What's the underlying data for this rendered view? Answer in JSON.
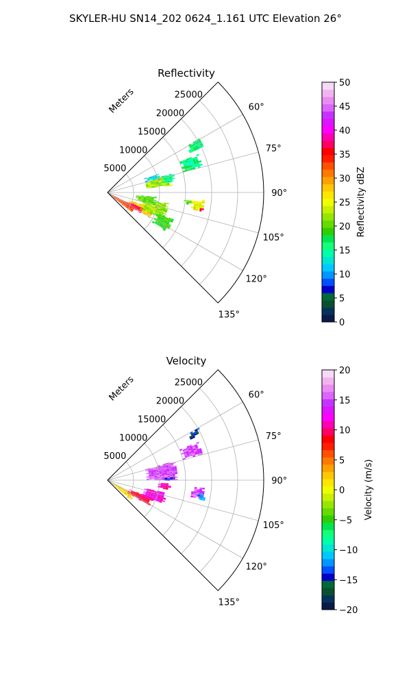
{
  "figure": {
    "title": "SKYLER-HU  SN14_202  0624_1.161 UTC Elevation 26°"
  },
  "chart_data": [
    {
      "type": "heatmap",
      "projection": "polar-sector",
      "title": "Reflectivity",
      "radial_label": "Meters",
      "radial_ticks": [
        5000,
        10000,
        15000,
        20000,
        25000
      ],
      "radial_tick_labels": [
        "5000",
        "10000",
        "15000",
        "20000",
        "25000"
      ],
      "rlim": [
        0,
        30000
      ],
      "angle_ticks": [
        60,
        75,
        90,
        105,
        120,
        135
      ],
      "angle_tick_labels": [
        "60°",
        "75°",
        "90°",
        "105°",
        "120°",
        "135°"
      ],
      "theta_range_deg": [
        45,
        135
      ],
      "grid": true,
      "colorbar": {
        "label": "Reflectivity dBZ",
        "min": 0,
        "max": 50,
        "ticks": [
          0,
          5,
          10,
          15,
          20,
          25,
          30,
          35,
          40,
          45,
          50
        ],
        "tick_labels": [
          "0",
          "5",
          "10",
          "15",
          "20",
          "25",
          "30",
          "35",
          "40",
          "45",
          "50"
        ],
        "colors": [
          "#0a1a4a",
          "#06325a",
          "#0a5030",
          "#00693a",
          "#0000c8",
          "#0050ff",
          "#0096ff",
          "#00c8ff",
          "#00e6d2",
          "#00ffaa",
          "#14ff78",
          "#00e650",
          "#32cd00",
          "#64dc00",
          "#96e600",
          "#c8f000",
          "#f0ff00",
          "#ffe600",
          "#ffc800",
          "#ffa000",
          "#ff7800",
          "#ff5000",
          "#ff1e00",
          "#ff0000",
          "#ff0064",
          "#ff00b4",
          "#ff00ff",
          "#dc14ff",
          "#c832ff",
          "#dc64ff",
          "#eb8cf0",
          "#f0b4f0",
          "#f8d8f8"
        ]
      },
      "echoes": [
        {
          "r": 3000,
          "az": 123,
          "dr": 6000,
          "daz": 14,
          "value": 33
        },
        {
          "r": 7000,
          "az": 115,
          "dr": 5000,
          "daz": 12,
          "value": 28
        },
        {
          "r": 9500,
          "az": 108,
          "dr": 5000,
          "daz": 16,
          "value": 22
        },
        {
          "r": 7500,
          "az": 100,
          "dr": 4000,
          "daz": 10,
          "value": 20
        },
        {
          "r": 6000,
          "az": 118,
          "dr": 3000,
          "daz": 8,
          "value": 37
        },
        {
          "r": 12000,
          "az": 118,
          "dr": 3500,
          "daz": 12,
          "value": 19
        },
        {
          "r": 10000,
          "az": 79,
          "dr": 5000,
          "daz": 10,
          "value": 22
        },
        {
          "r": 9000,
          "az": 72,
          "dr": 3000,
          "daz": 6,
          "value": 12
        },
        {
          "r": 12000,
          "az": 77,
          "dr": 2500,
          "daz": 7,
          "value": 15
        },
        {
          "r": 17000,
          "az": 71,
          "dr": 4000,
          "daz": 8,
          "value": 16
        },
        {
          "r": 19000,
          "az": 62,
          "dr": 3000,
          "daz": 5,
          "value": 15
        },
        {
          "r": 17500,
          "az": 98,
          "dr": 2500,
          "daz": 7,
          "value": 25
        },
        {
          "r": 18200,
          "az": 100,
          "dr": 1200,
          "daz": 3,
          "value": 37
        },
        {
          "r": 15500,
          "az": 97,
          "dr": 1500,
          "daz": 3,
          "value": 20
        }
      ]
    },
    {
      "type": "heatmap",
      "projection": "polar-sector",
      "title": "Velocity",
      "radial_label": "Meters",
      "radial_ticks": [
        5000,
        10000,
        15000,
        20000,
        25000
      ],
      "radial_tick_labels": [
        "5000",
        "10000",
        "15000",
        "20000",
        "25000"
      ],
      "rlim": [
        0,
        30000
      ],
      "angle_ticks": [
        60,
        75,
        90,
        105,
        120,
        135
      ],
      "angle_tick_labels": [
        "60°",
        "75°",
        "90°",
        "105°",
        "120°",
        "135°"
      ],
      "theta_range_deg": [
        45,
        135
      ],
      "grid": true,
      "colorbar": {
        "label": "Velocity (m/s)",
        "min": -20,
        "max": 20,
        "ticks": [
          -20,
          -15,
          -10,
          -5,
          0,
          5,
          10,
          15,
          20
        ],
        "tick_labels": [
          "−20",
          "−15",
          "−10",
          "−5",
          "0",
          "5",
          "10",
          "15",
          "20"
        ],
        "colors": [
          "#0a1a4a",
          "#06325a",
          "#0a5030",
          "#00693a",
          "#0000c8",
          "#0050ff",
          "#0096ff",
          "#00c8ff",
          "#00e6d2",
          "#00ffaa",
          "#14ff78",
          "#00e650",
          "#32cd00",
          "#64dc00",
          "#96e600",
          "#c8f000",
          "#f0ff00",
          "#ffe600",
          "#ffc800",
          "#ffa000",
          "#ff7800",
          "#ff5000",
          "#ff1e00",
          "#ff0000",
          "#ff0064",
          "#ff00b4",
          "#ff00ff",
          "#dc14ff",
          "#c832ff",
          "#dc64ff",
          "#eb8cf0",
          "#f0b4f0",
          "#f8d8f8"
        ]
      },
      "echoes": [
        {
          "r": 3000,
          "az": 123,
          "dr": 6000,
          "daz": 14,
          "value": 2
        },
        {
          "r": 7000,
          "az": 117,
          "dr": 5000,
          "daz": 10,
          "value": 9
        },
        {
          "r": 9500,
          "az": 108,
          "dr": 4500,
          "daz": 12,
          "value": 12
        },
        {
          "r": 11000,
          "az": 96,
          "dr": 2500,
          "daz": 6,
          "value": 11
        },
        {
          "r": 10500,
          "az": 82,
          "dr": 6000,
          "daz": 16,
          "value": 15
        },
        {
          "r": 12000,
          "az": 89,
          "dr": 2000,
          "daz": 3,
          "value": -14
        },
        {
          "r": 17000,
          "az": 71,
          "dr": 4000,
          "daz": 8,
          "value": 15
        },
        {
          "r": 17500,
          "az": 98,
          "dr": 2500,
          "daz": 7,
          "value": 15
        },
        {
          "r": 18300,
          "az": 100,
          "dr": 1600,
          "daz": 4,
          "value": -12
        },
        {
          "r": 19000,
          "az": 62,
          "dr": 2500,
          "daz": 4,
          "value": -15
        }
      ]
    }
  ]
}
